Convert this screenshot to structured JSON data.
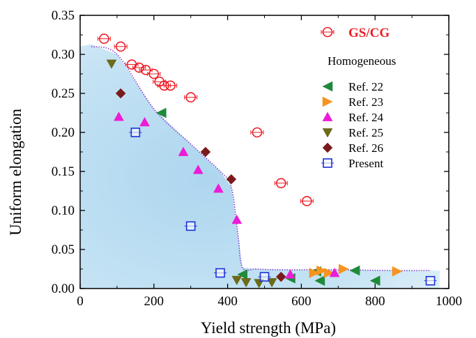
{
  "chart_data": {
    "type": "scatter",
    "title": "",
    "xlabel": "Yield strength (MPa)",
    "ylabel": "Uniform elongation",
    "xlim": [
      0,
      1000
    ],
    "ylim": [
      0,
      0.35
    ],
    "x_ticks": [
      "0",
      "200",
      "400",
      "600",
      "800",
      "1000"
    ],
    "y_ticks": [
      "0.00",
      "0.05",
      "0.10",
      "0.15",
      "0.20",
      "0.25",
      "0.30",
      "0.35"
    ],
    "x_tick_values": [
      0,
      200,
      400,
      600,
      800,
      1000
    ],
    "y_tick_values": [
      0,
      0.05,
      0.1,
      0.15,
      0.2,
      0.25,
      0.3,
      0.35
    ],
    "grid": false,
    "legend_position": "top-right",
    "legend_subheading": "Homogeneous",
    "colors": {
      "gscg": "#ee1c24",
      "ref22": "#1e8a3a",
      "ref23": "#f7931e",
      "ref24": "#ec1cd6",
      "ref25": "#6b6b1a",
      "ref26": "#7a1b1b",
      "present": "#1c2fd9",
      "region_fill": "#a9d4ee",
      "boundary": "#8a3fd1"
    },
    "boundary": {
      "x": [
        30,
        100,
        200,
        300,
        380,
        410,
        428,
        440,
        480,
        550,
        700,
        850,
        950
      ],
      "y": [
        0.31,
        0.3,
        0.23,
        0.185,
        0.15,
        0.13,
        0.07,
        0.027,
        0.025,
        0.024,
        0.024,
        0.023,
        0.023
      ]
    },
    "region": {
      "x": [
        0,
        30,
        100,
        200,
        300,
        380,
        410,
        428,
        440,
        480,
        550,
        700,
        850,
        975,
        975,
        0
      ],
      "y": [
        0.31,
        0.313,
        0.3,
        0.23,
        0.185,
        0.15,
        0.13,
        0.07,
        0.027,
        0.025,
        0.024,
        0.024,
        0.023,
        0.023,
        0,
        0
      ]
    },
    "series": [
      {
        "name": "GS/CG",
        "marker": "circle-open",
        "points": [
          [
            65,
            0.32
          ],
          [
            110,
            0.31
          ],
          [
            140,
            0.287
          ],
          [
            160,
            0.283
          ],
          [
            178,
            0.28
          ],
          [
            200,
            0.275
          ],
          [
            215,
            0.265
          ],
          [
            228,
            0.26
          ],
          [
            245,
            0.26
          ],
          [
            300,
            0.245
          ],
          [
            480,
            0.2
          ],
          [
            545,
            0.135
          ],
          [
            615,
            0.112
          ]
        ]
      },
      {
        "name": "Ref. 22",
        "marker": "triangle-left",
        "points": [
          [
            220,
            0.225
          ],
          [
            440,
            0.018
          ],
          [
            570,
            0.013
          ],
          [
            640,
            0.022
          ],
          [
            650,
            0.01
          ],
          [
            745,
            0.023
          ],
          [
            800,
            0.01
          ]
        ]
      },
      {
        "name": "Ref. 23",
        "marker": "triangle-right",
        "points": [
          [
            635,
            0.02
          ],
          [
            655,
            0.023
          ],
          [
            675,
            0.02
          ],
          [
            715,
            0.025
          ],
          [
            860,
            0.022
          ]
        ]
      },
      {
        "name": "Ref. 24",
        "marker": "triangle-up",
        "points": [
          [
            105,
            0.22
          ],
          [
            175,
            0.213
          ],
          [
            280,
            0.175
          ],
          [
            320,
            0.152
          ],
          [
            375,
            0.128
          ],
          [
            425,
            0.088
          ],
          [
            570,
            0.018
          ],
          [
            690,
            0.02
          ]
        ]
      },
      {
        "name": "Ref. 25",
        "marker": "triangle-down",
        "points": [
          [
            85,
            0.288
          ],
          [
            425,
            0.011
          ],
          [
            450,
            0.008
          ],
          [
            485,
            0.007
          ],
          [
            520,
            0.008
          ]
        ]
      },
      {
        "name": "Ref. 26",
        "marker": "diamond",
        "points": [
          [
            110,
            0.25
          ],
          [
            340,
            0.175
          ],
          [
            410,
            0.14
          ],
          [
            545,
            0.015
          ]
        ]
      },
      {
        "name": "Present",
        "marker": "square-open",
        "points": [
          [
            150,
            0.2
          ],
          [
            300,
            0.08
          ],
          [
            380,
            0.02
          ],
          [
            500,
            0.015
          ],
          [
            950,
            0.01
          ]
        ]
      }
    ]
  }
}
